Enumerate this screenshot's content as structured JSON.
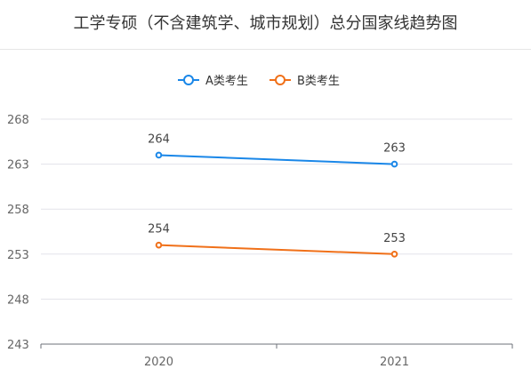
{
  "chart_data": {
    "type": "line",
    "title": "工学专硕（不含建筑学、城市规划）总分国家线趋势图",
    "categories": [
      "2020",
      "2021"
    ],
    "series": [
      {
        "name": "A类考生",
        "values": [
          264,
          263
        ],
        "color": "#1a87e8"
      },
      {
        "name": "B类考生",
        "values": [
          254,
          253
        ],
        "color": "#f07019"
      }
    ],
    "ylim": [
      243,
      268
    ],
    "yticks": [
      "243",
      "248",
      "253",
      "258",
      "263",
      "268"
    ],
    "grid": true,
    "legend": "top-center",
    "data_labels": true
  }
}
